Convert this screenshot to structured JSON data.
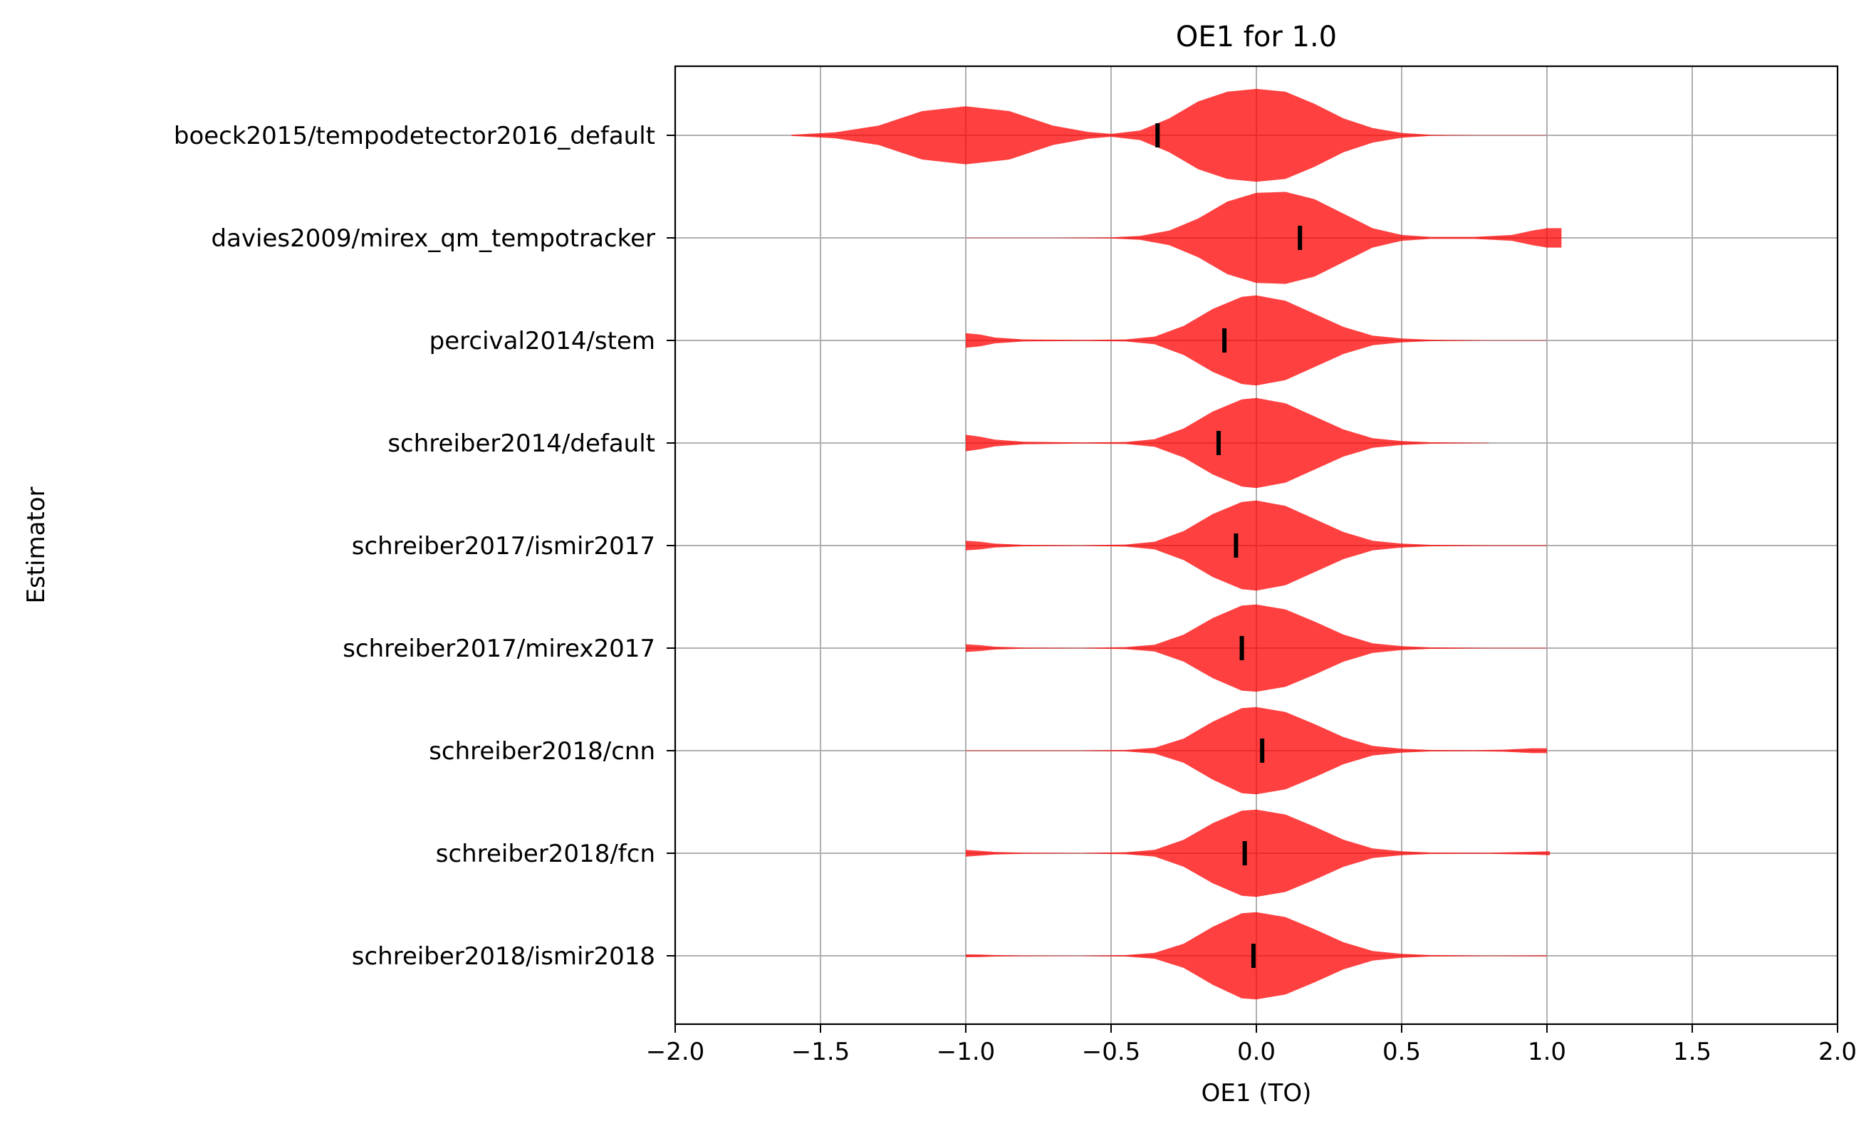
{
  "chart_data": {
    "type": "violin",
    "orientation": "horizontal",
    "title": "OE1 for 1.0",
    "xlabel": "OE1 (TO)",
    "ylabel": "Estimator",
    "xlim": [
      -2.0,
      2.0
    ],
    "xticks": [
      -2.0,
      -1.5,
      -1.0,
      -0.5,
      0.0,
      0.5,
      1.0,
      1.5,
      2.0
    ],
    "xtick_labels": [
      "−2.0",
      "−1.5",
      "−1.0",
      "−0.5",
      "0.0",
      "0.5",
      "1.0",
      "1.5",
      "2.0"
    ],
    "grid": true,
    "violin_color": "#ff0000",
    "violin_alpha": 0.75,
    "marker_color": "#000000",
    "categories": [
      "boeck2015/tempodetector2016_default",
      "davies2009/mirex_qm_tempotracker",
      "percival2014/stem",
      "schreiber2014/default",
      "schreiber2017/ismir2017",
      "schreiber2017/mirex2017",
      "schreiber2018/cnn",
      "schreiber2018/fcn",
      "schreiber2018/ismir2018"
    ],
    "series": [
      {
        "mean": -0.34,
        "range": [
          -1.6,
          1.0
        ],
        "profile": [
          [
            -1.6,
            0.01
          ],
          [
            -1.45,
            0.06
          ],
          [
            -1.3,
            0.2
          ],
          [
            -1.15,
            0.5
          ],
          [
            -1.0,
            0.6
          ],
          [
            -0.85,
            0.5
          ],
          [
            -0.7,
            0.2
          ],
          [
            -0.58,
            0.07
          ],
          [
            -0.5,
            0.03
          ],
          [
            -0.4,
            0.1
          ],
          [
            -0.3,
            0.35
          ],
          [
            -0.2,
            0.7
          ],
          [
            -0.1,
            0.9
          ],
          [
            0.0,
            0.96
          ],
          [
            0.1,
            0.9
          ],
          [
            0.2,
            0.65
          ],
          [
            0.3,
            0.35
          ],
          [
            0.4,
            0.15
          ],
          [
            0.5,
            0.05
          ],
          [
            0.6,
            0.01
          ],
          [
            0.75,
            0.004
          ],
          [
            1.0,
            0.004
          ]
        ]
      },
      {
        "mean": 0.15,
        "range": [
          -1.0,
          1.05
        ],
        "profile": [
          [
            -1.0,
            0.005
          ],
          [
            -0.7,
            0.005
          ],
          [
            -0.5,
            0.01
          ],
          [
            -0.4,
            0.04
          ],
          [
            -0.3,
            0.15
          ],
          [
            -0.2,
            0.4
          ],
          [
            -0.1,
            0.75
          ],
          [
            0.0,
            0.93
          ],
          [
            0.1,
            0.95
          ],
          [
            0.2,
            0.8
          ],
          [
            0.3,
            0.5
          ],
          [
            0.4,
            0.2
          ],
          [
            0.5,
            0.06
          ],
          [
            0.6,
            0.02
          ],
          [
            0.75,
            0.02
          ],
          [
            0.88,
            0.06
          ],
          [
            0.95,
            0.15
          ],
          [
            1.0,
            0.2
          ],
          [
            1.05,
            0.2
          ]
        ]
      },
      {
        "mean": -0.11,
        "range": [
          -1.0,
          1.0
        ],
        "profile": [
          [
            -1.0,
            0.15
          ],
          [
            -0.95,
            0.12
          ],
          [
            -0.9,
            0.06
          ],
          [
            -0.8,
            0.02
          ],
          [
            -0.6,
            0.01
          ],
          [
            -0.45,
            0.02
          ],
          [
            -0.35,
            0.08
          ],
          [
            -0.25,
            0.3
          ],
          [
            -0.15,
            0.65
          ],
          [
            -0.05,
            0.9
          ],
          [
            0.0,
            0.93
          ],
          [
            0.1,
            0.82
          ],
          [
            0.2,
            0.55
          ],
          [
            0.3,
            0.28
          ],
          [
            0.4,
            0.1
          ],
          [
            0.5,
            0.04
          ],
          [
            0.6,
            0.015
          ],
          [
            0.8,
            0.005
          ],
          [
            1.0,
            0.005
          ]
        ]
      },
      {
        "mean": -0.13,
        "range": [
          -1.0,
          0.8
        ],
        "profile": [
          [
            -1.0,
            0.17
          ],
          [
            -0.95,
            0.13
          ],
          [
            -0.9,
            0.07
          ],
          [
            -0.8,
            0.025
          ],
          [
            -0.6,
            0.01
          ],
          [
            -0.45,
            0.02
          ],
          [
            -0.35,
            0.08
          ],
          [
            -0.25,
            0.3
          ],
          [
            -0.15,
            0.65
          ],
          [
            -0.05,
            0.9
          ],
          [
            0.0,
            0.93
          ],
          [
            0.1,
            0.82
          ],
          [
            0.2,
            0.55
          ],
          [
            0.3,
            0.28
          ],
          [
            0.4,
            0.1
          ],
          [
            0.5,
            0.04
          ],
          [
            0.6,
            0.015
          ],
          [
            0.8,
            0.005
          ]
        ]
      },
      {
        "mean": -0.07,
        "range": [
          -1.0,
          1.0
        ],
        "profile": [
          [
            -1.0,
            0.1
          ],
          [
            -0.95,
            0.08
          ],
          [
            -0.9,
            0.04
          ],
          [
            -0.8,
            0.015
          ],
          [
            -0.6,
            0.008
          ],
          [
            -0.45,
            0.02
          ],
          [
            -0.35,
            0.08
          ],
          [
            -0.25,
            0.3
          ],
          [
            -0.15,
            0.65
          ],
          [
            -0.05,
            0.9
          ],
          [
            0.0,
            0.93
          ],
          [
            0.1,
            0.82
          ],
          [
            0.2,
            0.55
          ],
          [
            0.3,
            0.28
          ],
          [
            0.4,
            0.1
          ],
          [
            0.5,
            0.04
          ],
          [
            0.6,
            0.015
          ],
          [
            0.8,
            0.008
          ],
          [
            1.0,
            0.008
          ]
        ]
      },
      {
        "mean": -0.05,
        "range": [
          -1.0,
          1.0
        ],
        "profile": [
          [
            -1.0,
            0.08
          ],
          [
            -0.95,
            0.06
          ],
          [
            -0.9,
            0.03
          ],
          [
            -0.8,
            0.012
          ],
          [
            -0.6,
            0.006
          ],
          [
            -0.45,
            0.02
          ],
          [
            -0.35,
            0.07
          ],
          [
            -0.25,
            0.28
          ],
          [
            -0.15,
            0.62
          ],
          [
            -0.05,
            0.88
          ],
          [
            0.0,
            0.9
          ],
          [
            0.1,
            0.8
          ],
          [
            0.2,
            0.55
          ],
          [
            0.3,
            0.28
          ],
          [
            0.4,
            0.1
          ],
          [
            0.5,
            0.04
          ],
          [
            0.6,
            0.015
          ],
          [
            0.8,
            0.006
          ],
          [
            1.0,
            0.006
          ]
        ]
      },
      {
        "mean": 0.02,
        "range": [
          -1.0,
          1.0
        ],
        "profile": [
          [
            -1.0,
            0.006
          ],
          [
            -0.8,
            0.006
          ],
          [
            -0.6,
            0.006
          ],
          [
            -0.45,
            0.015
          ],
          [
            -0.35,
            0.06
          ],
          [
            -0.25,
            0.25
          ],
          [
            -0.15,
            0.6
          ],
          [
            -0.05,
            0.88
          ],
          [
            0.0,
            0.9
          ],
          [
            0.1,
            0.8
          ],
          [
            0.2,
            0.55
          ],
          [
            0.3,
            0.28
          ],
          [
            0.4,
            0.1
          ],
          [
            0.5,
            0.04
          ],
          [
            0.6,
            0.015
          ],
          [
            0.75,
            0.01
          ],
          [
            0.85,
            0.02
          ],
          [
            0.95,
            0.05
          ],
          [
            1.0,
            0.05
          ]
        ]
      },
      {
        "mean": -0.04,
        "range": [
          -1.0,
          1.01
        ],
        "profile": [
          [
            -1.0,
            0.07
          ],
          [
            -0.95,
            0.05
          ],
          [
            -0.9,
            0.025
          ],
          [
            -0.8,
            0.01
          ],
          [
            -0.6,
            0.006
          ],
          [
            -0.45,
            0.02
          ],
          [
            -0.35,
            0.07
          ],
          [
            -0.25,
            0.28
          ],
          [
            -0.15,
            0.62
          ],
          [
            -0.05,
            0.88
          ],
          [
            0.0,
            0.9
          ],
          [
            0.1,
            0.8
          ],
          [
            0.2,
            0.55
          ],
          [
            0.3,
            0.28
          ],
          [
            0.4,
            0.1
          ],
          [
            0.5,
            0.04
          ],
          [
            0.6,
            0.015
          ],
          [
            0.8,
            0.01
          ],
          [
            0.95,
            0.03
          ],
          [
            1.01,
            0.04
          ]
        ]
      },
      {
        "mean": -0.01,
        "range": [
          -1.0,
          1.0
        ],
        "profile": [
          [
            -1.0,
            0.03
          ],
          [
            -0.95,
            0.025
          ],
          [
            -0.9,
            0.015
          ],
          [
            -0.8,
            0.008
          ],
          [
            -0.6,
            0.005
          ],
          [
            -0.45,
            0.015
          ],
          [
            -0.35,
            0.06
          ],
          [
            -0.25,
            0.25
          ],
          [
            -0.15,
            0.6
          ],
          [
            -0.05,
            0.88
          ],
          [
            0.0,
            0.9
          ],
          [
            0.1,
            0.8
          ],
          [
            0.2,
            0.55
          ],
          [
            0.3,
            0.28
          ],
          [
            0.4,
            0.1
          ],
          [
            0.5,
            0.04
          ],
          [
            0.6,
            0.015
          ],
          [
            0.8,
            0.006
          ],
          [
            1.0,
            0.01
          ]
        ]
      }
    ]
  }
}
